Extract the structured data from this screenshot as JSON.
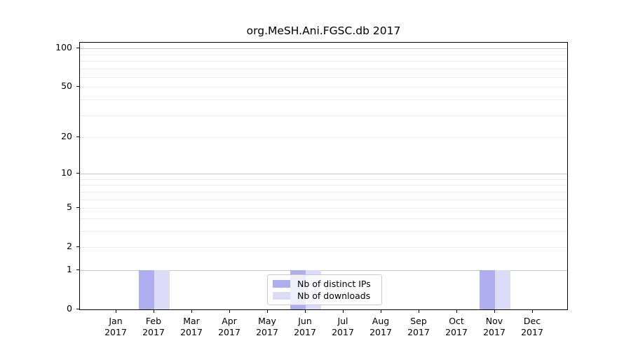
{
  "title": "org.MeSH.Ani.FGSC.db 2017",
  "legend": {
    "items": [
      {
        "label": "Nb of distinct IPs"
      },
      {
        "label": "Nb of downloads"
      }
    ]
  },
  "chart_data": {
    "type": "bar",
    "title": "org.MeSH.Ani.FGSC.db 2017",
    "categories": [
      "Jan 2017",
      "Feb 2017",
      "Mar 2017",
      "Apr 2017",
      "May 2017",
      "Jun 2017",
      "Jul 2017",
      "Aug 2017",
      "Sep 2017",
      "Oct 2017",
      "Nov 2017",
      "Dec 2017"
    ],
    "series": [
      {
        "name": "Nb of distinct IPs",
        "color": "#aeaef0",
        "values": [
          0,
          1,
          0,
          0,
          0,
          1,
          0,
          0,
          0,
          0,
          1,
          0
        ]
      },
      {
        "name": "Nb of downloads",
        "color": "#dcdcf8",
        "values": [
          0,
          1,
          0,
          0,
          0,
          1,
          0,
          0,
          0,
          0,
          1,
          0
        ]
      }
    ],
    "yscale": "log1p",
    "ylim": [
      0,
      115
    ],
    "yticks": [
      0,
      1,
      2,
      5,
      10,
      20,
      50,
      100
    ],
    "major_gridlines": [
      1,
      10,
      100
    ],
    "minor_gridlines": [
      2,
      3,
      4,
      5,
      6,
      7,
      8,
      9,
      20,
      30,
      40,
      50,
      60,
      70,
      80,
      90
    ],
    "grid": "horizontal",
    "legend_position": "lower center inside",
    "colors": {
      "grid_major": "#c6c6c6",
      "grid_minor": "#ebebeb",
      "axis": "#000000",
      "background": "#ffffff"
    }
  }
}
